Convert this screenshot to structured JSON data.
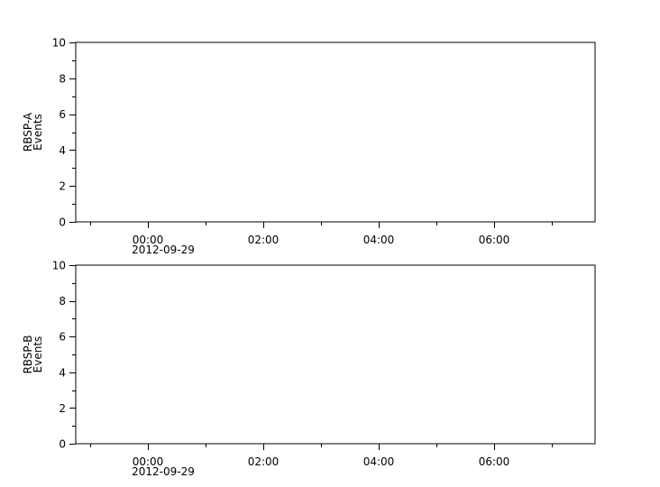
{
  "chart_data": [
    {
      "type": "line",
      "ylabel_lines": [
        "RBSP-A",
        "Events"
      ],
      "ylim": [
        0,
        10
      ],
      "yticks": [
        "0",
        "2",
        "4",
        "6",
        "8",
        "10"
      ],
      "xlim": [
        "2012-09-28 22:45",
        "2012-09-29 07:45"
      ],
      "xticks": [
        {
          "label": "00:00",
          "sublabel": "2012-09-29",
          "hour": 0
        },
        {
          "label": "02:00",
          "sublabel": "",
          "hour": 2
        },
        {
          "label": "04:00",
          "sublabel": "",
          "hour": 4
        },
        {
          "label": "06:00",
          "sublabel": "",
          "hour": 6
        }
      ],
      "series": [],
      "grid": false
    },
    {
      "type": "line",
      "ylabel_lines": [
        "RBSP-B",
        "Events"
      ],
      "ylim": [
        0,
        10
      ],
      "yticks": [
        "0",
        "2",
        "4",
        "6",
        "8",
        "10"
      ],
      "xlim": [
        "2012-09-28 22:45",
        "2012-09-29 07:45"
      ],
      "xticks": [
        {
          "label": "00:00",
          "sublabel": "2012-09-29",
          "hour": 0
        },
        {
          "label": "02:00",
          "sublabel": "",
          "hour": 2
        },
        {
          "label": "04:00",
          "sublabel": "",
          "hour": 4
        },
        {
          "label": "06:00",
          "sublabel": "",
          "hour": 6
        }
      ],
      "series": [],
      "grid": false
    }
  ]
}
